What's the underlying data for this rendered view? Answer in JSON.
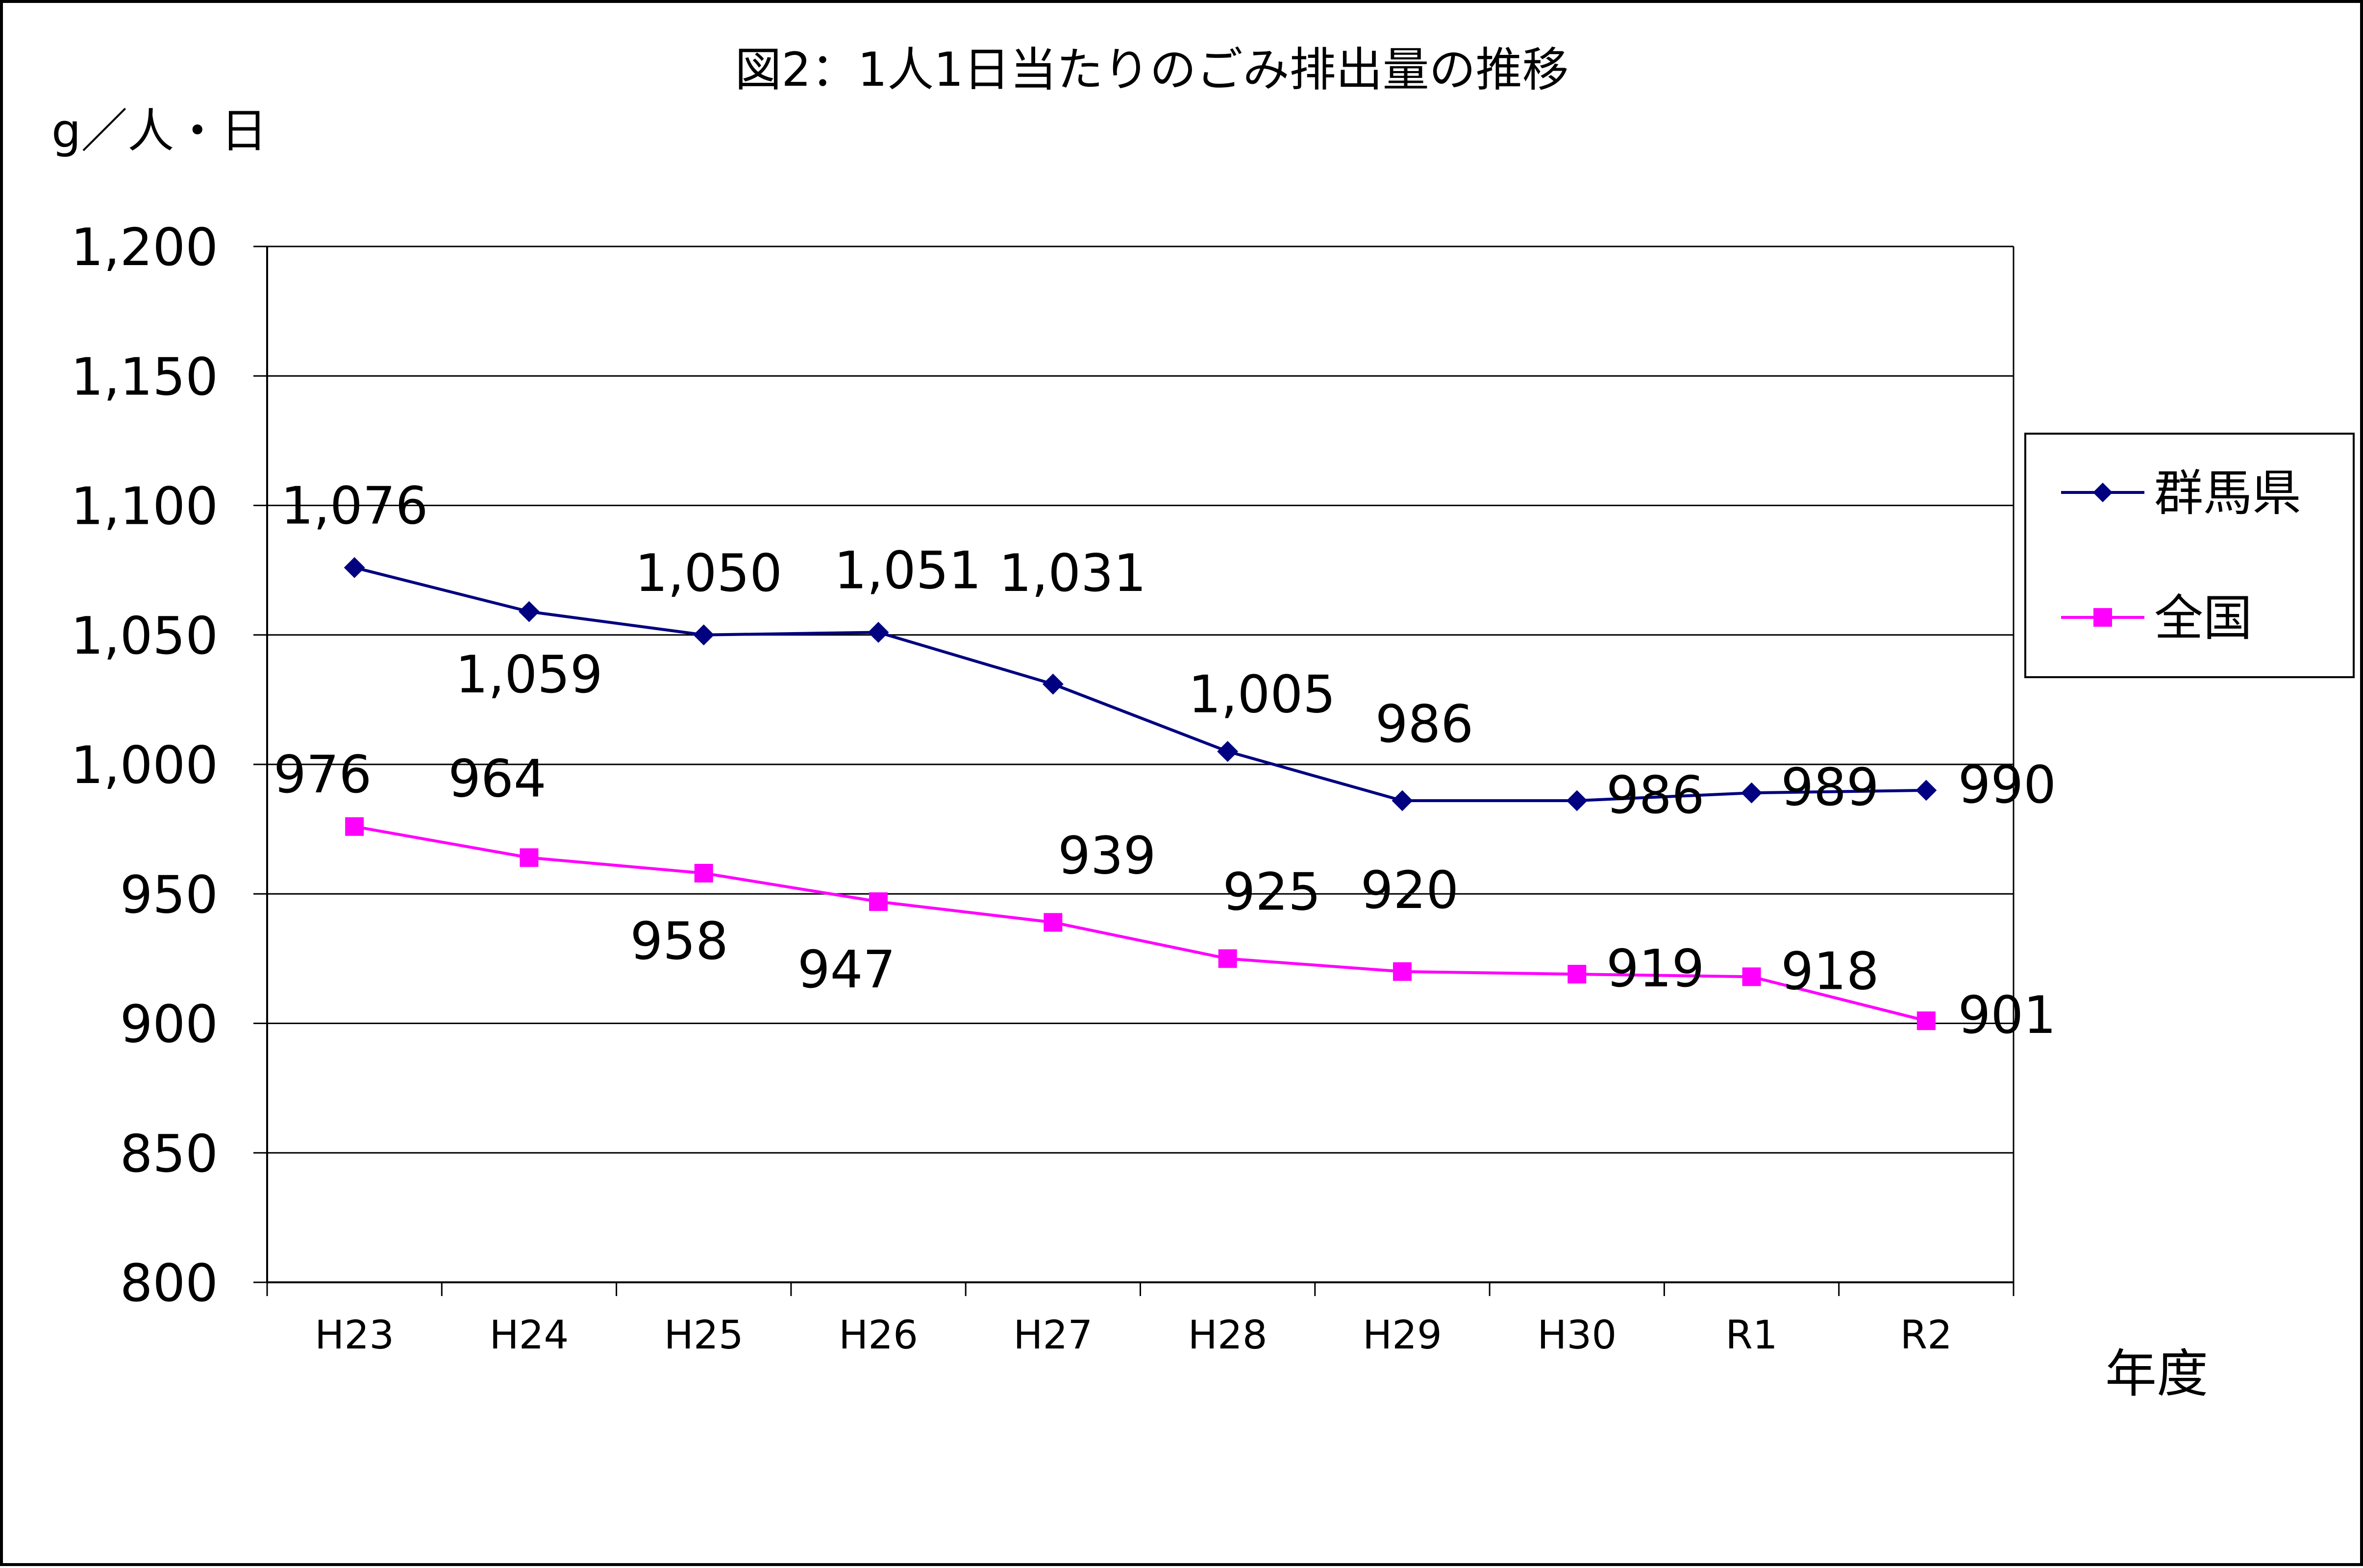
{
  "chart_data": {
    "type": "line",
    "title": "図2：1人1日当たりのごみ排出量の推移",
    "ylabel": "g／人・日",
    "xlabel": "年度",
    "categories": [
      "H23",
      "H24",
      "H25",
      "H26",
      "H27",
      "H28",
      "H29",
      "H30",
      "R1",
      "R2"
    ],
    "ylim": [
      800,
      1200
    ],
    "ytick_step": 50,
    "ytick_labels": [
      "800",
      "850",
      "900",
      "950",
      "1,000",
      "1,050",
      "1,100",
      "1,150",
      "1,200"
    ],
    "grid": true,
    "legend_position": "right",
    "series": [
      {
        "name": "群馬県",
        "color": "#000080",
        "marker": "diamond",
        "values": [
          1076,
          1059,
          1050,
          1051,
          1031,
          1005,
          986,
          986,
          989,
          990
        ],
        "labels": [
          "1,076",
          "1,059",
          "1,050",
          "1,051",
          "1,031",
          "1,005",
          "986",
          "986",
          "989",
          "990"
        ]
      },
      {
        "name": "全国",
        "color": "#FF00FF",
        "marker": "square",
        "values": [
          976,
          964,
          958,
          947,
          939,
          925,
          920,
          919,
          918,
          901
        ],
        "labels": [
          "976",
          "964",
          "958",
          "947",
          "939",
          "925",
          "920",
          "919",
          "918",
          "901"
        ]
      }
    ]
  }
}
